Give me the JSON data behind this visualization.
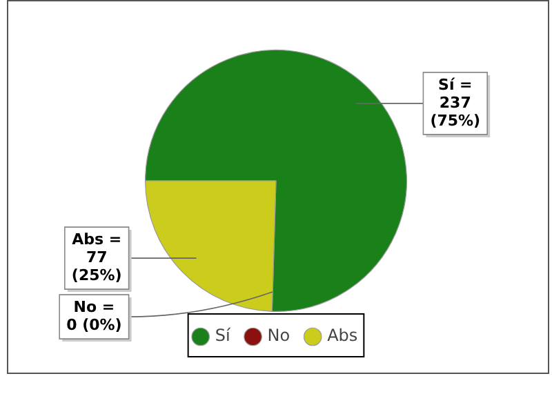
{
  "chart_data": {
    "type": "pie",
    "categories": [
      "Sí",
      "No",
      "Abs"
    ],
    "values": [
      237,
      0,
      77
    ],
    "colors": [
      "#1a801a",
      "#8b1010",
      "#cccc1c"
    ],
    "value_labels": [
      "Sí = 237 (75%)",
      "No = 0 (0%)",
      "Abs = 77 (25%)"
    ],
    "legend": "bottom"
  }
}
